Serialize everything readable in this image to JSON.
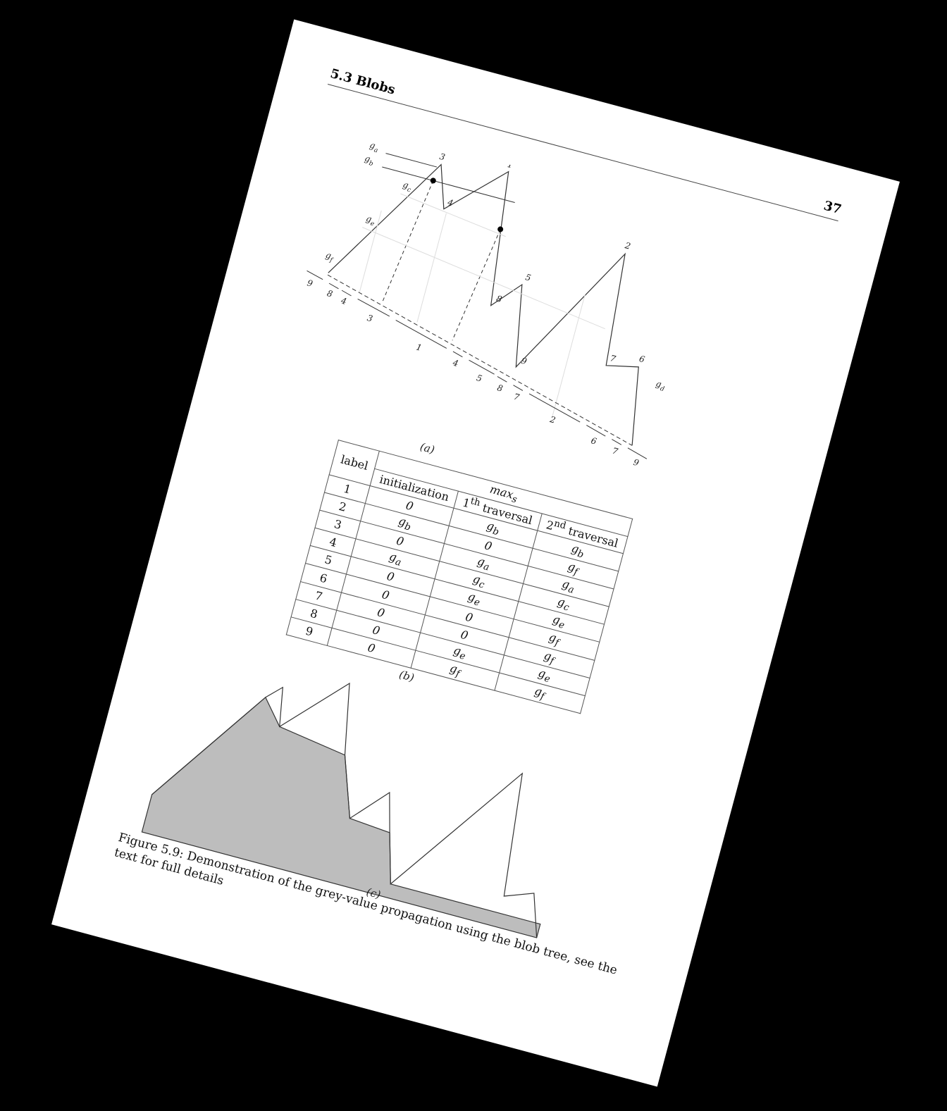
{
  "header": {
    "section": "5.3 Blobs",
    "page_number": "37"
  },
  "figure_a": {
    "sublabel": "(a)",
    "grey_labels": [
      "g",
      "a",
      "g",
      "b",
      "g",
      "c",
      "g",
      "e",
      "g",
      "f",
      "g",
      "d"
    ],
    "peak_labels": [
      "3",
      "1",
      "4",
      "2",
      "5",
      "8",
      "7",
      "6",
      "9"
    ],
    "bottom_labels": [
      "9",
      "8",
      "4",
      "3",
      "1",
      "4",
      "5",
      "8",
      "7",
      "2",
      "6",
      "7",
      "9"
    ]
  },
  "table": {
    "sublabel": "(b)",
    "header_label": "label",
    "header_maxs": "max",
    "header_maxs_sub": "s",
    "col_init": "initialization",
    "col_first": "1",
    "col_first_sup": "th",
    "col_second": "2",
    "col_second_sup": "nd",
    "traversal": "traversal",
    "rows": [
      {
        "label": "1",
        "init": "0",
        "first": "g",
        "first_sub": "b",
        "second": "g",
        "second_sub": "b"
      },
      {
        "label": "2",
        "init": "g",
        "init_sub": "b",
        "first": "0",
        "second": "g",
        "second_sub": "f"
      },
      {
        "label": "3",
        "init": "0",
        "first": "g",
        "first_sub": "a",
        "second": "g",
        "second_sub": "a"
      },
      {
        "label": "4",
        "init": "g",
        "init_sub": "a",
        "first": "g",
        "first_sub": "c",
        "second": "g",
        "second_sub": "c"
      },
      {
        "label": "5",
        "init": "0",
        "first": "g",
        "first_sub": "e",
        "second": "g",
        "second_sub": "e"
      },
      {
        "label": "6",
        "init": "0",
        "first": "0",
        "second": "g",
        "second_sub": "f"
      },
      {
        "label": "7",
        "init": "0",
        "first": "0",
        "second": "g",
        "second_sub": "f"
      },
      {
        "label": "8",
        "init": "0",
        "first": "g",
        "first_sub": "e",
        "second": "g",
        "second_sub": "e"
      },
      {
        "label": "9",
        "init": "0",
        "first": "g",
        "first_sub": "f",
        "second": "g",
        "second_sub": "f"
      }
    ]
  },
  "figure_c": {
    "sublabel": "(c)",
    "fill_color": "#bdbdbd"
  },
  "caption": {
    "label": "Figure 5.9:",
    "text": "Demonstration of the grey-value propagation using the blob tree, see the text for full details"
  }
}
